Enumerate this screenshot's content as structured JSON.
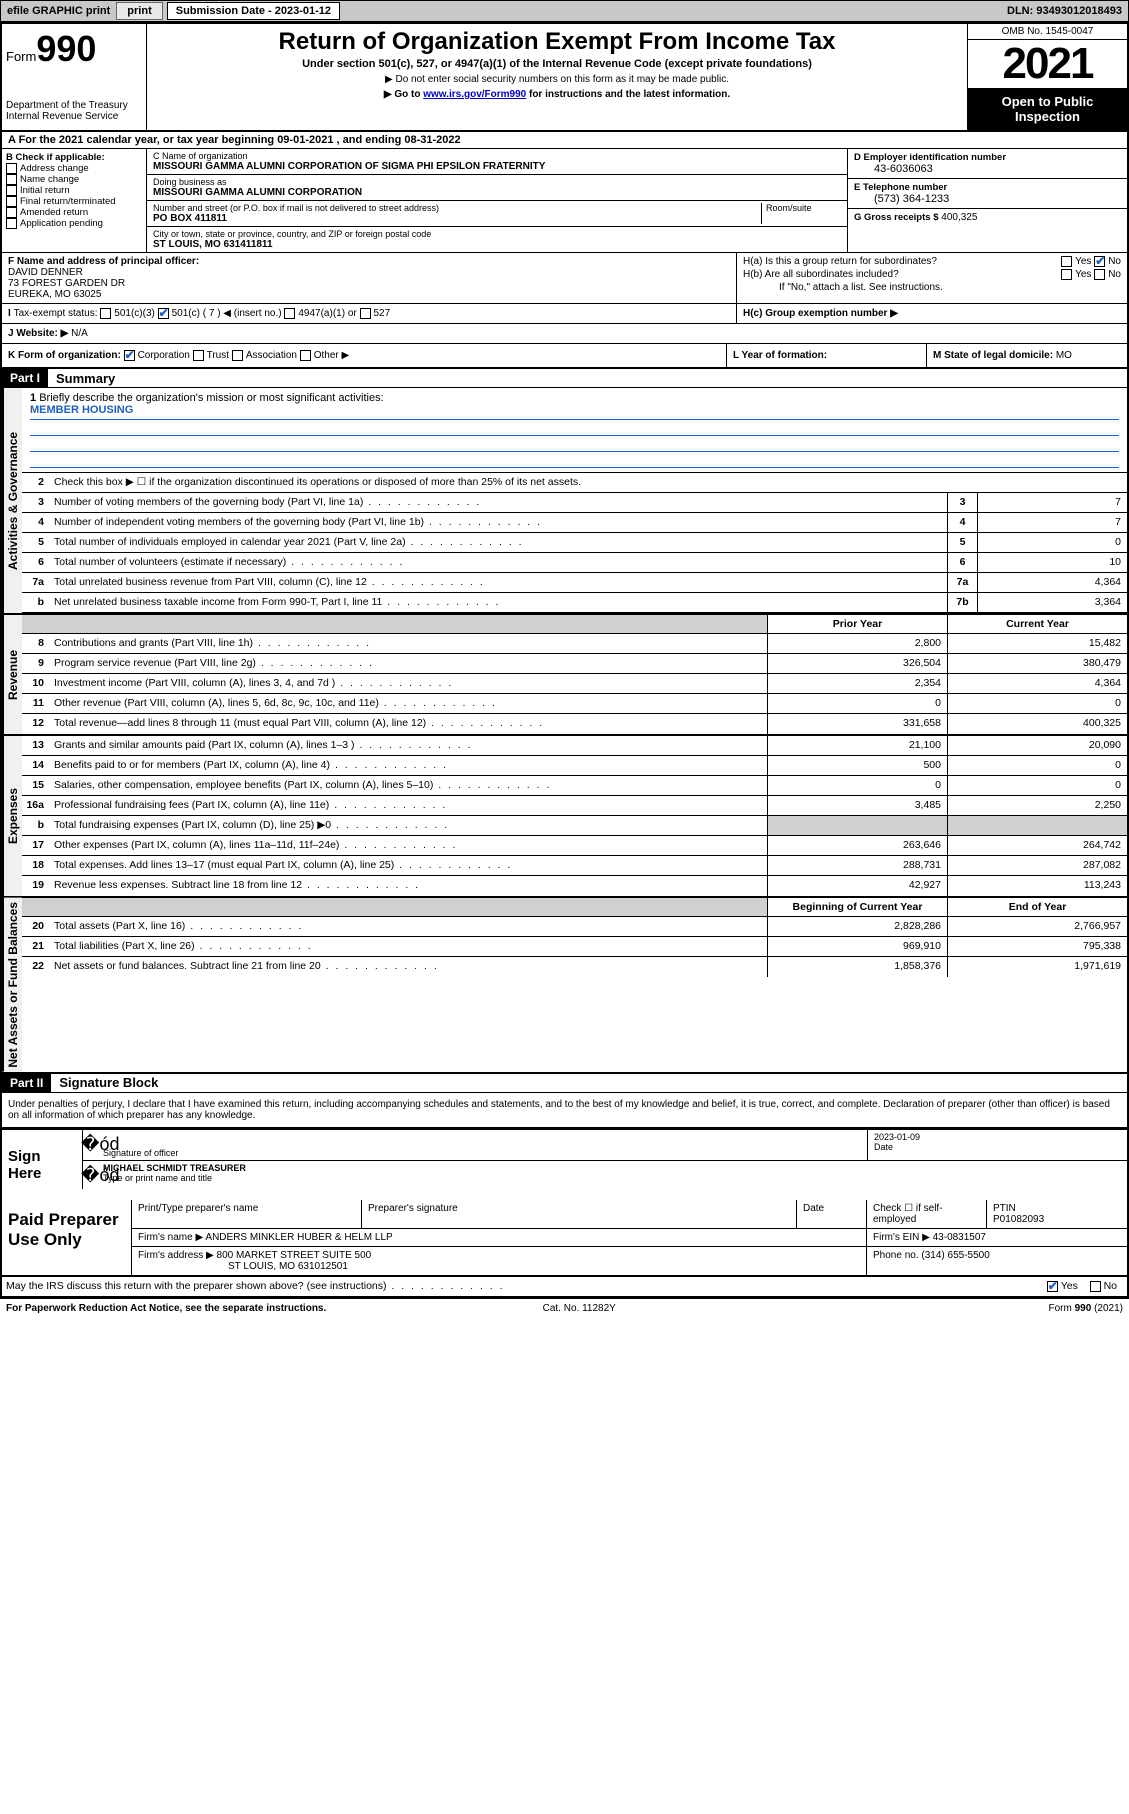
{
  "topbar": {
    "efile": "efile GRAPHIC print",
    "sub_label": "Submission Date - 2023-01-12",
    "dln": "DLN: 93493012018493"
  },
  "header": {
    "form_prefix": "Form",
    "form_num": "990",
    "dept": "Department of the Treasury",
    "irs": "Internal Revenue Service",
    "title": "Return of Organization Exempt From Income Tax",
    "subtitle": "Under section 501(c), 527, or 4947(a)(1) of the Internal Revenue Code (except private foundations)",
    "note1": "▶ Do not enter social security numbers on this form as it may be made public.",
    "note2_pre": "▶ Go to ",
    "note2_link": "www.irs.gov/Form990",
    "note2_post": " for instructions and the latest information.",
    "omb": "OMB No. 1545-0047",
    "year": "2021",
    "inspect": "Open to Public Inspection"
  },
  "rowA": {
    "text": "A For the 2021 calendar year, or tax year beginning 09-01-2021   , and ending 08-31-2022"
  },
  "B": {
    "label": "B Check if applicable:",
    "opts": [
      "Address change",
      "Name change",
      "Initial return",
      "Final return/terminated",
      "Amended return",
      "Application pending"
    ]
  },
  "C": {
    "name_lbl": "C Name of organization",
    "name": "MISSOURI GAMMA ALUMNI CORPORATION OF SIGMA PHI EPSILON FRATERNITY",
    "dba_lbl": "Doing business as",
    "dba": "MISSOURI GAMMA ALUMNI CORPORATION",
    "addr_lbl": "Number and street (or P.O. box if mail is not delivered to street address)",
    "room_lbl": "Room/suite",
    "addr": "PO BOX 411811",
    "city_lbl": "City or town, state or province, country, and ZIP or foreign postal code",
    "city": "ST LOUIS, MO  631411811"
  },
  "D": {
    "lbl": "D Employer identification number",
    "val": "43-6036063"
  },
  "E": {
    "lbl": "E Telephone number",
    "val": "(573) 364-1233"
  },
  "G": {
    "lbl": "G Gross receipts $",
    "val": "400,325"
  },
  "F": {
    "lbl": "F Name and address of principal officer:",
    "name": "DAVID DENNER",
    "addr1": "73 FOREST GARDEN DR",
    "addr2": "EUREKA, MO  63025"
  },
  "H": {
    "a": "H(a)  Is this a group return for subordinates?",
    "b": "H(b)  Are all subordinates included?",
    "b_note": "If \"No,\" attach a list. See instructions.",
    "c": "H(c)  Group exemption number ▶",
    "yes": "Yes",
    "no": "No"
  },
  "I": {
    "lbl": "Tax-exempt status:",
    "o1": "501(c)(3)",
    "o2": "501(c) ( 7 ) ◀ (insert no.)",
    "o3": "4947(a)(1) or",
    "o4": "527"
  },
  "J": {
    "lbl": "J Website: ▶",
    "val": "N/A"
  },
  "K": {
    "lbl": "K Form of organization:",
    "o1": "Corporation",
    "o2": "Trust",
    "o3": "Association",
    "o4": "Other ▶"
  },
  "L": {
    "lbl": "L Year of formation:",
    "val": ""
  },
  "M": {
    "lbl": "M State of legal domicile:",
    "val": "MO"
  },
  "part1": {
    "hdr": "Part I",
    "title": "Summary",
    "tab_gov": "Activities & Governance",
    "tab_rev": "Revenue",
    "tab_exp": "Expenses",
    "tab_net": "Net Assets or Fund Balances",
    "l1_lbl": "Briefly describe the organization's mission or most significant activities:",
    "l1_val": "MEMBER HOUSING",
    "l2": "Check this box ▶ ☐  if the organization discontinued its operations or disposed of more than 25% of its net assets.",
    "prior": "Prior Year",
    "current": "Current Year",
    "boy": "Beginning of Current Year",
    "eoy": "End of Year",
    "lines_gov": [
      {
        "n": "3",
        "d": "Number of voting members of the governing body (Part VI, line 1a)",
        "box": "3",
        "v": "7"
      },
      {
        "n": "4",
        "d": "Number of independent voting members of the governing body (Part VI, line 1b)",
        "box": "4",
        "v": "7"
      },
      {
        "n": "5",
        "d": "Total number of individuals employed in calendar year 2021 (Part V, line 2a)",
        "box": "5",
        "v": "0"
      },
      {
        "n": "6",
        "d": "Total number of volunteers (estimate if necessary)",
        "box": "6",
        "v": "10"
      },
      {
        "n": "7a",
        "d": "Total unrelated business revenue from Part VIII, column (C), line 12",
        "box": "7a",
        "v": "4,364"
      },
      {
        "n": "b",
        "d": "Net unrelated business taxable income from Form 990-T, Part I, line 11",
        "box": "7b",
        "v": "3,364"
      }
    ],
    "lines_rev": [
      {
        "n": "8",
        "d": "Contributions and grants (Part VIII, line 1h)",
        "p": "2,800",
        "c": "15,482"
      },
      {
        "n": "9",
        "d": "Program service revenue (Part VIII, line 2g)",
        "p": "326,504",
        "c": "380,479"
      },
      {
        "n": "10",
        "d": "Investment income (Part VIII, column (A), lines 3, 4, and 7d )",
        "p": "2,354",
        "c": "4,364"
      },
      {
        "n": "11",
        "d": "Other revenue (Part VIII, column (A), lines 5, 6d, 8c, 9c, 10c, and 11e)",
        "p": "0",
        "c": "0"
      },
      {
        "n": "12",
        "d": "Total revenue—add lines 8 through 11 (must equal Part VIII, column (A), line 12)",
        "p": "331,658",
        "c": "400,325"
      }
    ],
    "lines_exp": [
      {
        "n": "13",
        "d": "Grants and similar amounts paid (Part IX, column (A), lines 1–3 )",
        "p": "21,100",
        "c": "20,090"
      },
      {
        "n": "14",
        "d": "Benefits paid to or for members (Part IX, column (A), line 4)",
        "p": "500",
        "c": "0"
      },
      {
        "n": "15",
        "d": "Salaries, other compensation, employee benefits (Part IX, column (A), lines 5–10)",
        "p": "0",
        "c": "0"
      },
      {
        "n": "16a",
        "d": "Professional fundraising fees (Part IX, column (A), line 11e)",
        "p": "3,485",
        "c": "2,250"
      },
      {
        "n": "b",
        "d": "Total fundraising expenses (Part IX, column (D), line 25) ▶0",
        "p": "",
        "c": "",
        "shade": true
      },
      {
        "n": "17",
        "d": "Other expenses (Part IX, column (A), lines 11a–11d, 11f–24e)",
        "p": "263,646",
        "c": "264,742"
      },
      {
        "n": "18",
        "d": "Total expenses. Add lines 13–17 (must equal Part IX, column (A), line 25)",
        "p": "288,731",
        "c": "287,082"
      },
      {
        "n": "19",
        "d": "Revenue less expenses. Subtract line 18 from line 12",
        "p": "42,927",
        "c": "113,243"
      }
    ],
    "lines_net": [
      {
        "n": "20",
        "d": "Total assets (Part X, line 16)",
        "p": "2,828,286",
        "c": "2,766,957"
      },
      {
        "n": "21",
        "d": "Total liabilities (Part X, line 26)",
        "p": "969,910",
        "c": "795,338"
      },
      {
        "n": "22",
        "d": "Net assets or fund balances. Subtract line 21 from line 20",
        "p": "1,858,376",
        "c": "1,971,619"
      }
    ]
  },
  "part2": {
    "hdr": "Part II",
    "title": "Signature Block",
    "decl": "Under penalties of perjury, I declare that I have examined this return, including accompanying schedules and statements, and to the best of my knowledge and belief, it is true, correct, and complete. Declaration of preparer (other than officer) is based on all information of which preparer has any knowledge.",
    "sign_here": "Sign Here",
    "sig_officer": "Signature of officer",
    "sig_date_lbl": "Date",
    "sig_date": "2023-01-09",
    "sig_name": "MICHAEL SCHMIDT TREASURER",
    "sig_name_lbl": "Type or print name and title",
    "paid": "Paid Preparer Use Only",
    "pt_name_lbl": "Print/Type preparer's name",
    "pt_sig_lbl": "Preparer's signature",
    "pt_date_lbl": "Date",
    "pt_check": "Check ☐ if self-employed",
    "ptin_lbl": "PTIN",
    "ptin": "P01082093",
    "firm_name_lbl": "Firm's name   ▶",
    "firm_name": "ANDERS MINKLER HUBER & HELM LLP",
    "firm_ein_lbl": "Firm's EIN ▶",
    "firm_ein": "43-0831507",
    "firm_addr_lbl": "Firm's address ▶",
    "firm_addr": "800 MARKET STREET SUITE 500",
    "firm_city": "ST LOUIS, MO  631012501",
    "firm_phone_lbl": "Phone no.",
    "firm_phone": "(314) 655-5500",
    "discuss": "May the IRS discuss this return with the preparer shown above? (see instructions)",
    "yes": "Yes",
    "no": "No"
  },
  "footer": {
    "pra": "For Paperwork Reduction Act Notice, see the separate instructions.",
    "cat": "Cat. No. 11282Y",
    "form": "Form 990 (2021)"
  }
}
